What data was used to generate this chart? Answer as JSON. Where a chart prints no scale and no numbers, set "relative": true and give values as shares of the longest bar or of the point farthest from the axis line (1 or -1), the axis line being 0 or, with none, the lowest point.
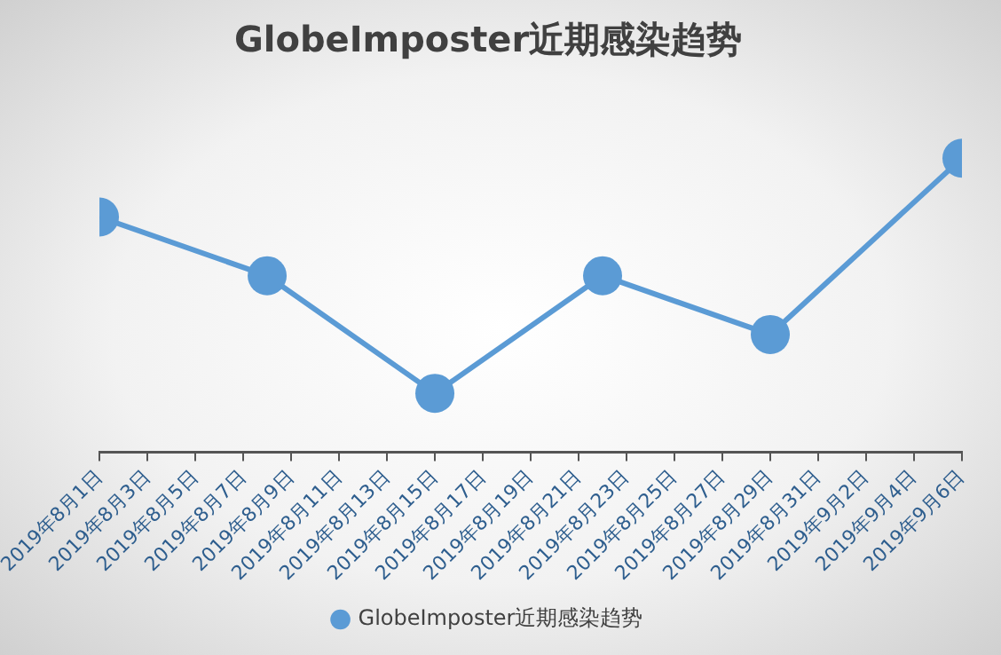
{
  "chart_data": {
    "type": "line",
    "title": "GlobeImposter近期感染趋势",
    "relative": true,
    "x": [
      "2019-08-01",
      "2019-08-08",
      "2019-08-15",
      "2019-08-22",
      "2019-08-29",
      "2019-09-06"
    ],
    "series": [
      {
        "name": "GlobeImposter近期感染趋势",
        "color": "#5b9bd5",
        "values": [
          0.8,
          0.6,
          0.2,
          0.6,
          0.4,
          1
        ]
      }
    ],
    "xlim": [
      "2019-08-01",
      "2019-09-06"
    ],
    "xticks": [
      {
        "value": "2019-08-01",
        "label": "2019年8月1日"
      },
      {
        "value": "2019-08-03",
        "label": "2019年8月3日"
      },
      {
        "value": "2019-08-05",
        "label": "2019年8月5日"
      },
      {
        "value": "2019-08-07",
        "label": "2019年8月7日"
      },
      {
        "value": "2019-08-09",
        "label": "2019年8月9日"
      },
      {
        "value": "2019-08-11",
        "label": "2019年8月11日"
      },
      {
        "value": "2019-08-13",
        "label": "2019年8月13日"
      },
      {
        "value": "2019-08-15",
        "label": "2019年8月15日"
      },
      {
        "value": "2019-08-17",
        "label": "2019年8月17日"
      },
      {
        "value": "2019-08-19",
        "label": "2019年8月19日"
      },
      {
        "value": "2019-08-21",
        "label": "2019年8月21日"
      },
      {
        "value": "2019-08-23",
        "label": "2019年8月23日"
      },
      {
        "value": "2019-08-25",
        "label": "2019年8月25日"
      },
      {
        "value": "2019-08-27",
        "label": "2019年8月27日"
      },
      {
        "value": "2019-08-29",
        "label": "2019年8月29日"
      },
      {
        "value": "2019-08-31",
        "label": "2019年8月31日"
      },
      {
        "value": "2019-09-02",
        "label": "2019年9月2日"
      },
      {
        "value": "2019-09-04",
        "label": "2019年9月4日"
      },
      {
        "value": "2019-09-06",
        "label": "2019年9月6日"
      }
    ],
    "grid": false,
    "legend": "bottom",
    "marker": "circle",
    "line_style": "solid"
  }
}
